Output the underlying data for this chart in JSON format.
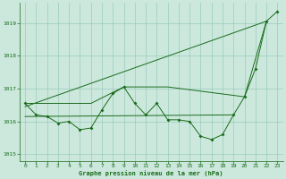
{
  "background_color": "#cce8dd",
  "grid_color": "#99ccbb",
  "line_color": "#1a6b1a",
  "title": "Graphe pression niveau de la mer (hPa)",
  "xlim": [
    -0.5,
    23.5
  ],
  "ylim": [
    1014.8,
    1019.6
  ],
  "yticks": [
    1015,
    1016,
    1017,
    1018,
    1019
  ],
  "xticks": [
    0,
    1,
    2,
    3,
    4,
    5,
    6,
    7,
    8,
    9,
    10,
    11,
    12,
    13,
    14,
    15,
    16,
    17,
    18,
    19,
    20,
    21,
    22,
    23
  ],
  "series1_x": [
    0,
    1,
    2,
    3,
    4,
    5,
    6,
    7,
    8,
    9,
    10,
    11,
    12,
    13,
    14,
    15,
    16,
    17,
    18,
    19,
    20,
    21,
    22,
    23
  ],
  "series1_y": [
    1016.55,
    1016.2,
    1016.15,
    1015.95,
    1016.0,
    1015.75,
    1015.8,
    1016.35,
    1016.85,
    1017.05,
    1016.55,
    1016.2,
    1016.55,
    1016.05,
    1016.05,
    1016.0,
    1015.55,
    1015.45,
    1015.6,
    1016.2,
    1016.75,
    1017.6,
    1019.05,
    1019.35
  ],
  "series2_x": [
    0,
    19
  ],
  "series2_y": [
    1016.15,
    1016.2
  ],
  "series3_x": [
    0,
    6,
    9,
    13,
    20,
    22
  ],
  "series3_y": [
    1016.55,
    1016.55,
    1017.05,
    1017.05,
    1016.75,
    1019.05
  ],
  "series4_x": [
    0,
    22
  ],
  "series4_y": [
    1016.45,
    1019.05
  ]
}
